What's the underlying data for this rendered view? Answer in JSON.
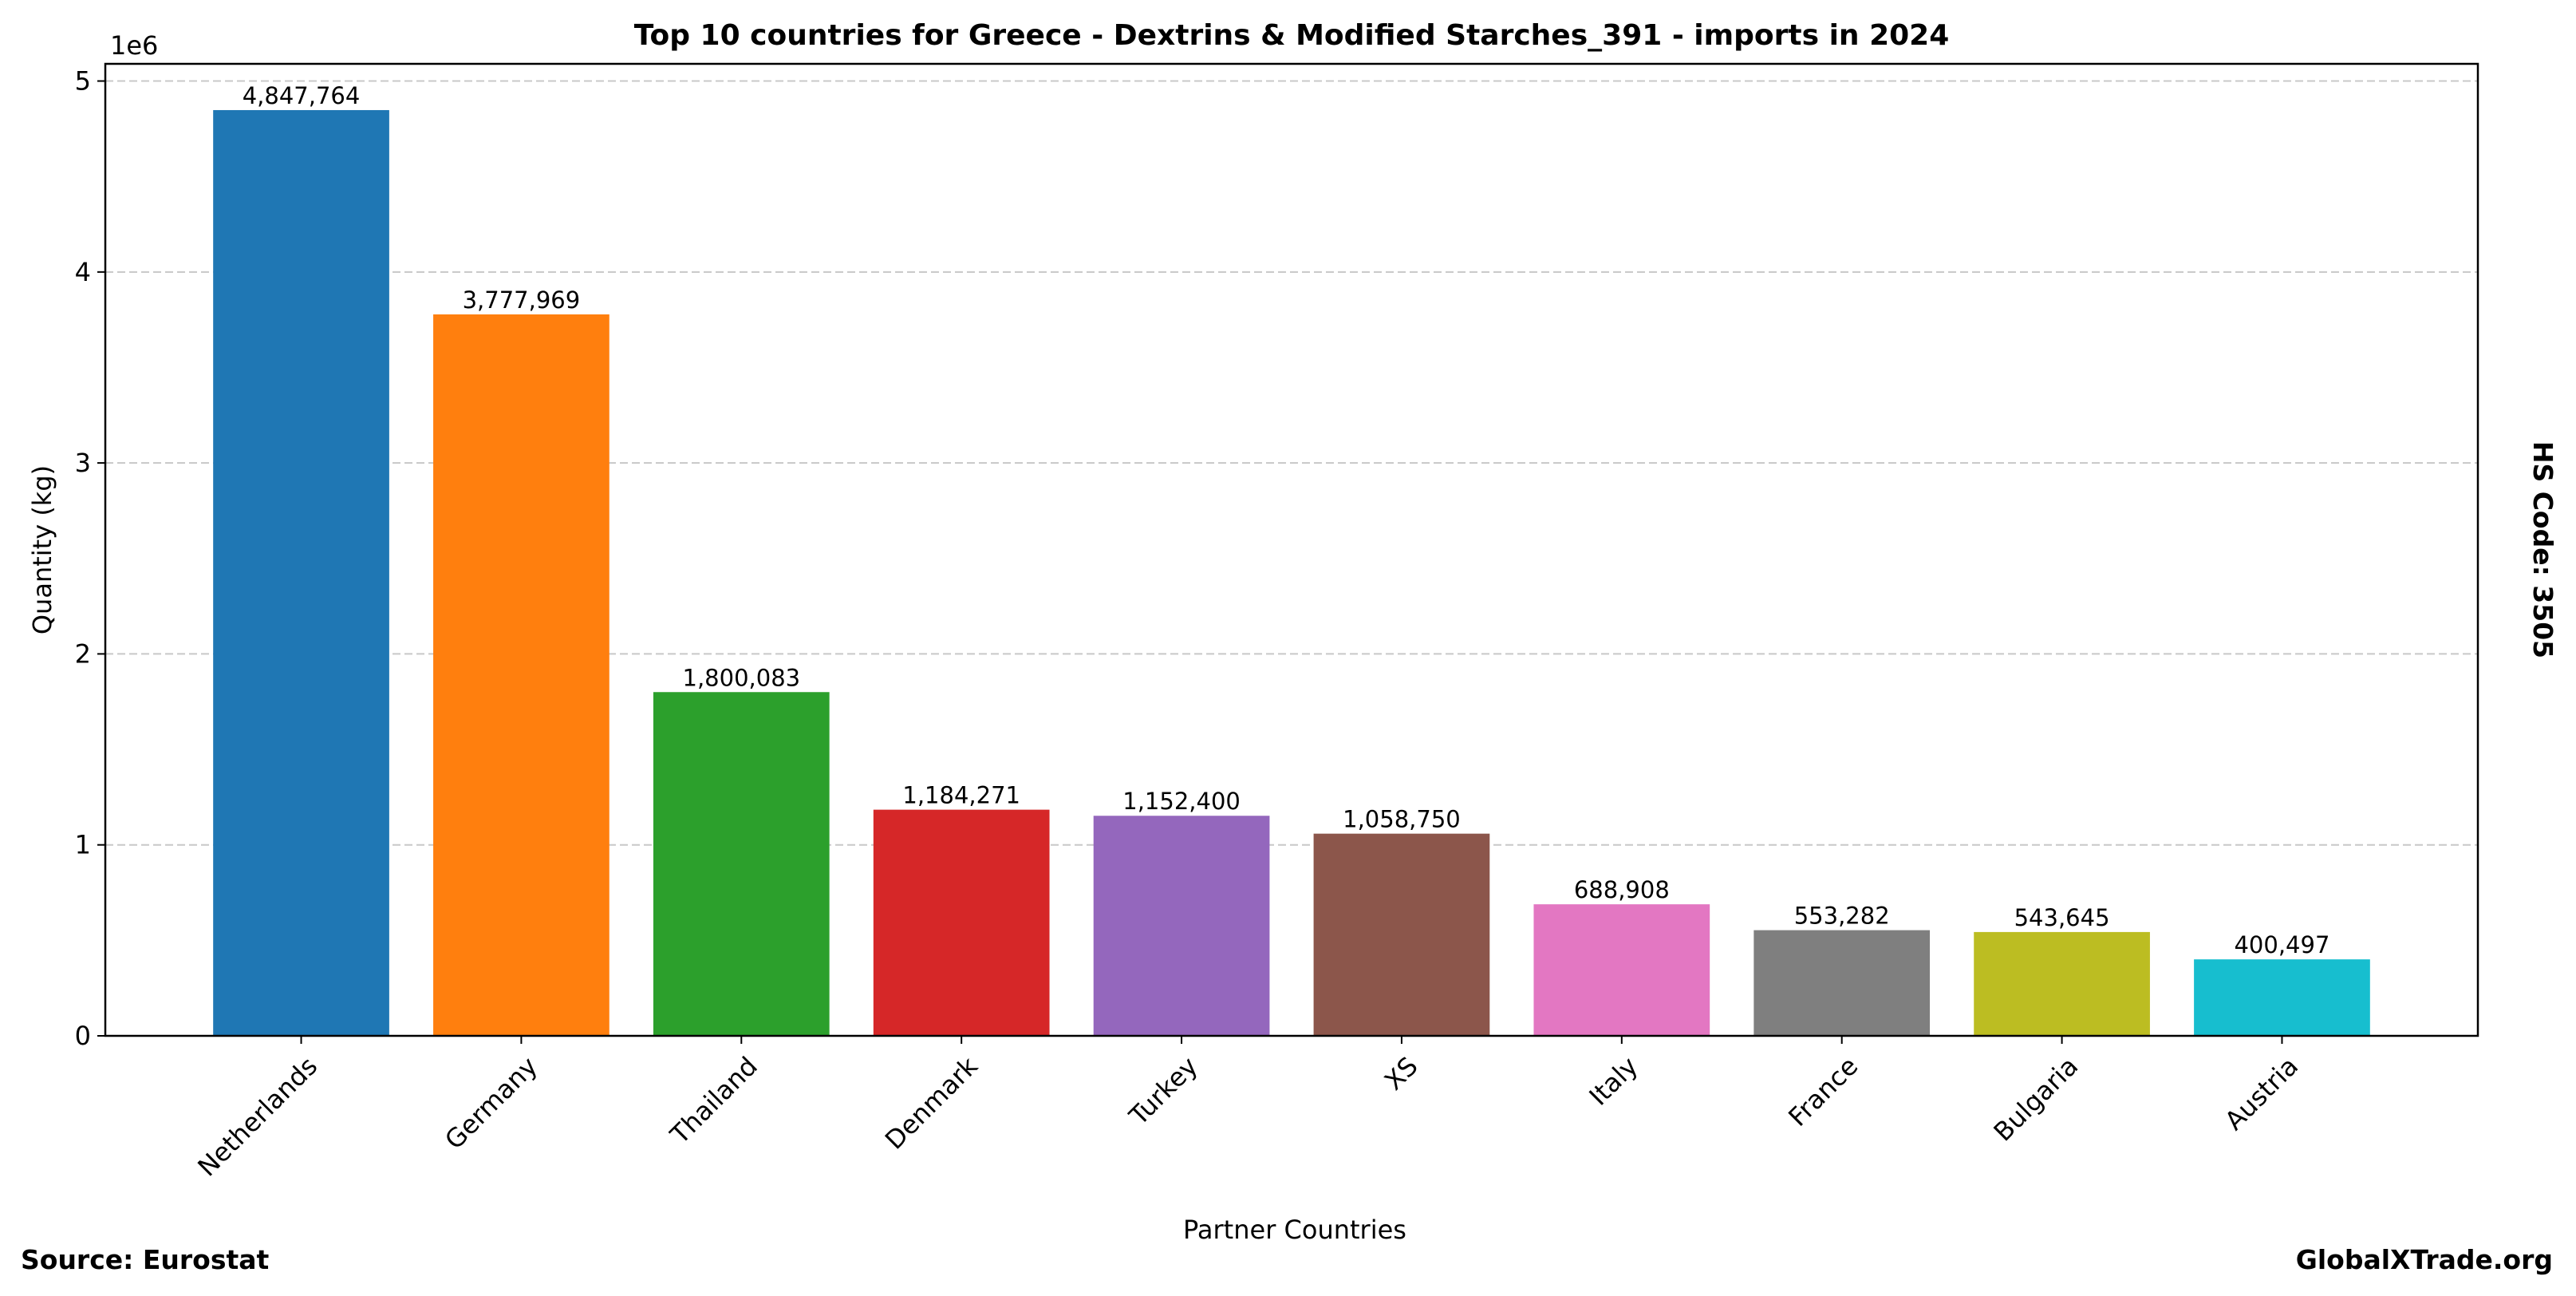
{
  "chart_data": {
    "type": "bar",
    "title": "Top 10 countries for Greece - Dextrins & Modified Starches_391 - imports in 2024",
    "xlabel": "Partner Countries",
    "ylabel": "Quantity (kg)",
    "y_offset_label": "1e6",
    "categories": [
      "Netherlands",
      "Germany",
      "Thailand",
      "Denmark",
      "Turkey",
      "XS",
      "Italy",
      "France",
      "Bulgaria",
      "Austria"
    ],
    "values": [
      4847764,
      3777969,
      1800083,
      1184271,
      1152400,
      1058750,
      688908,
      553282,
      543645,
      400497
    ],
    "value_labels": [
      "4,847,764",
      "3,777,969",
      "1,800,083",
      "1,184,271",
      "1,152,400",
      "1,058,750",
      "688,908",
      "553,282",
      "543,645",
      "400,497"
    ],
    "colors": [
      "#1f77b4",
      "#ff7f0e",
      "#2ca02c",
      "#d62728",
      "#9467bd",
      "#8c564b",
      "#e377c2",
      "#7f7f7f",
      "#bcbd22",
      "#17becf"
    ],
    "ylim": [
      0,
      5090000
    ],
    "yticks": [
      0,
      1,
      2,
      3,
      4,
      5
    ],
    "grid": "y-dashed",
    "legend": "none"
  },
  "side_label": "HS Code: 3505",
  "source": "Source: Eurostat",
  "brand": "GlobalXTrade.org"
}
